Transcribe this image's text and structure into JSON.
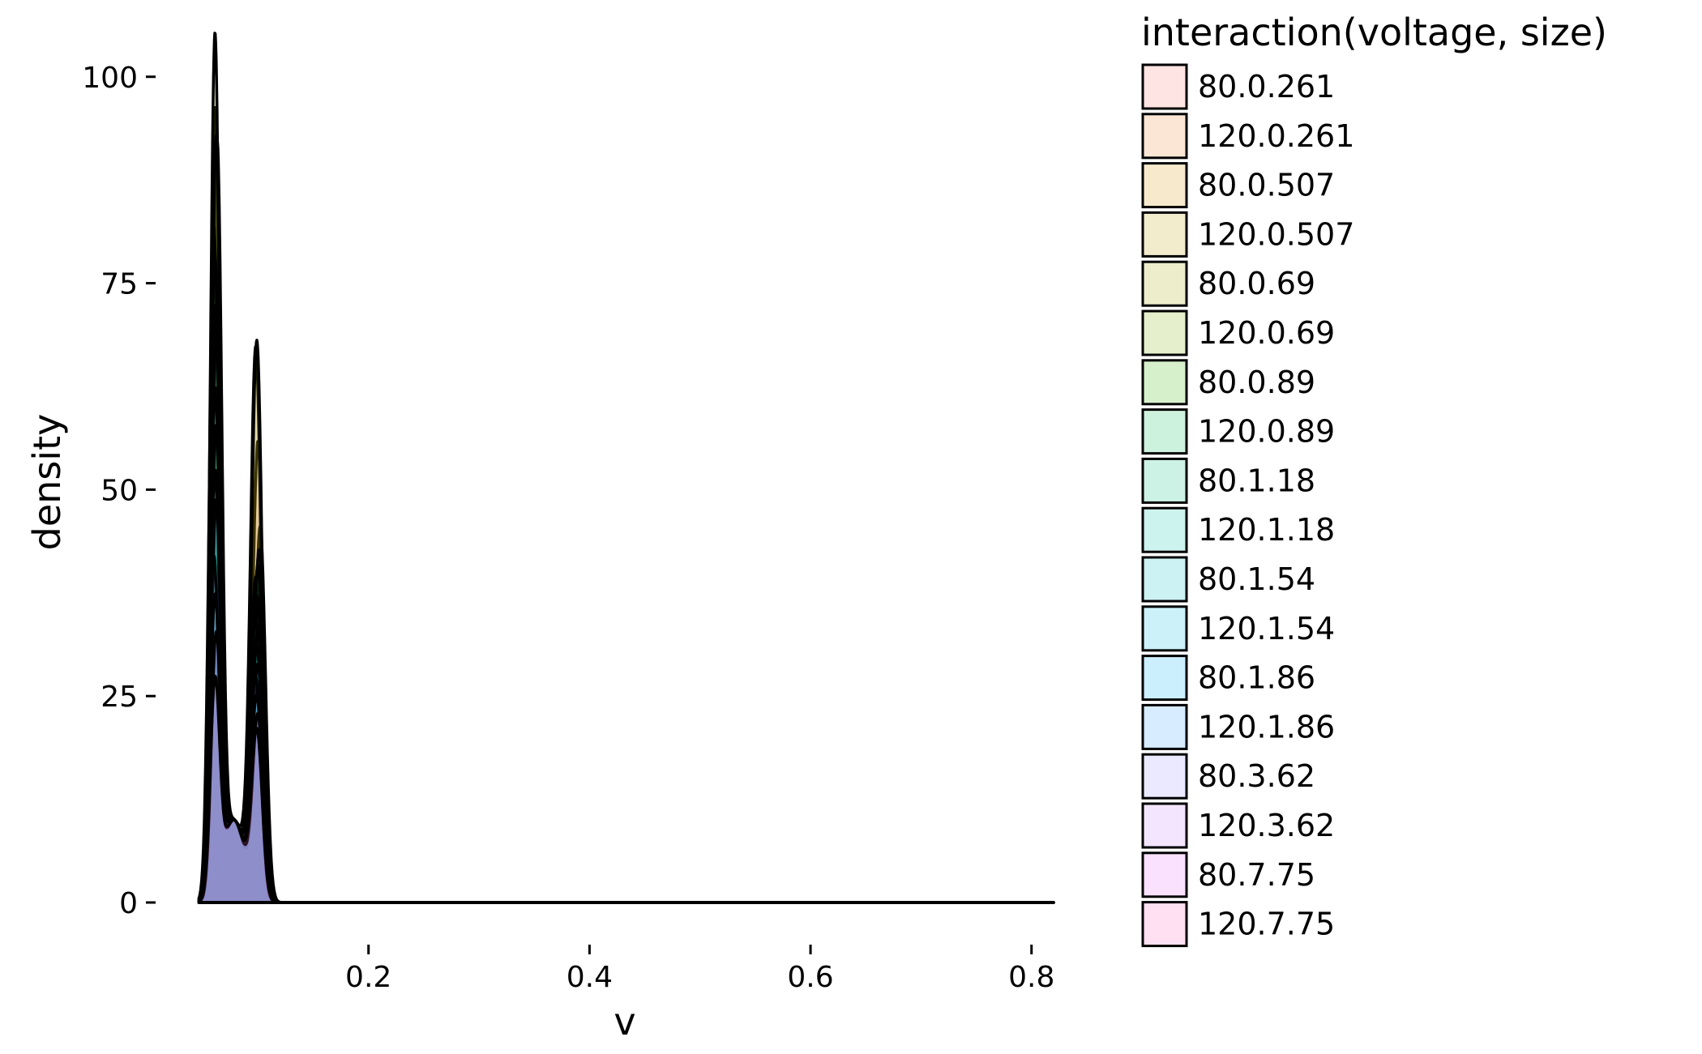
{
  "chart_data": {
    "type": "area",
    "subtype": "density",
    "xlabel": "v",
    "ylabel": "density",
    "xlim": [
      0.044,
      0.82
    ],
    "ylim": [
      0,
      104
    ],
    "x_ticks": [
      0.2,
      0.4,
      0.6,
      0.8
    ],
    "x_tick_labels": [
      "0.2",
      "0.4",
      "0.6",
      "0.8"
    ],
    "y_ticks": [
      0,
      25,
      50,
      75,
      100
    ],
    "y_tick_labels": [
      "0",
      "25",
      "50",
      "75",
      "100"
    ],
    "grid": false,
    "legend": {
      "title": "interaction(voltage, size)",
      "position": "right"
    },
    "series": [
      {
        "name": "80.0.261",
        "color": "#F8766D",
        "peaks": [
          [
            0.062,
            92
          ],
          [
            0.1,
            55
          ]
        ]
      },
      {
        "name": "120.0.261",
        "color": "#EA8331",
        "peaks": [
          [
            0.063,
            89
          ],
          [
            0.102,
            45
          ]
        ]
      },
      {
        "name": "80.0.507",
        "color": "#D89000",
        "peaks": [
          [
            0.061,
            94
          ],
          [
            0.098,
            66
          ]
        ]
      },
      {
        "name": "120.0.507",
        "color": "#C09B00",
        "peaks": [
          [
            0.062,
            88
          ],
          [
            0.1,
            40
          ]
        ]
      },
      {
        "name": "80.0.69",
        "color": "#A3A500",
        "peaks": [
          [
            0.061,
            103
          ],
          [
            0.099,
            67
          ]
        ]
      },
      {
        "name": "120.0.69",
        "color": "#7CAE00",
        "peaks": [
          [
            0.062,
            90
          ],
          [
            0.101,
            42
          ]
        ]
      },
      {
        "name": "80.0.89",
        "color": "#39B600",
        "peaks": [
          [
            0.06,
            80
          ],
          [
            0.098,
            38
          ]
        ]
      },
      {
        "name": "120.0.89",
        "color": "#00BB4E",
        "peaks": [
          [
            0.061,
            76
          ],
          [
            0.1,
            40
          ]
        ]
      },
      {
        "name": "80.1.18",
        "color": "#00BF7D",
        "peaks": [
          [
            0.061,
            70
          ],
          [
            0.099,
            36
          ]
        ]
      },
      {
        "name": "120.1.18",
        "color": "#00C1A3",
        "peaks": [
          [
            0.062,
            66
          ],
          [
            0.1,
            35
          ]
        ]
      },
      {
        "name": "80.1.54",
        "color": "#00BFC4",
        "peaks": [
          [
            0.061,
            60
          ],
          [
            0.098,
            33
          ]
        ]
      },
      {
        "name": "120.1.54",
        "color": "#00BAE0",
        "peaks": [
          [
            0.062,
            55
          ],
          [
            0.1,
            32
          ]
        ]
      },
      {
        "name": "80.1.86",
        "color": "#00B0F6",
        "peaks": [
          [
            0.061,
            50
          ],
          [
            0.099,
            30
          ]
        ]
      },
      {
        "name": "120.1.86",
        "color": "#35A2FF",
        "peaks": [
          [
            0.062,
            46
          ],
          [
            0.1,
            28
          ]
        ]
      },
      {
        "name": "80.3.62",
        "color": "#9590FF",
        "peaks": [
          [
            0.06,
            40
          ],
          [
            0.098,
            26
          ]
        ]
      },
      {
        "name": "120.3.62",
        "color": "#C77CFF",
        "peaks": [
          [
            0.061,
            35
          ],
          [
            0.099,
            24
          ]
        ]
      },
      {
        "name": "80.7.75",
        "color": "#E76BF3",
        "peaks": [
          [
            0.062,
            30
          ],
          [
            0.1,
            22
          ]
        ]
      },
      {
        "name": "120.7.75",
        "color": "#FF62BC",
        "peaks": [
          [
            0.061,
            25
          ],
          [
            0.099,
            20
          ]
        ]
      }
    ]
  }
}
